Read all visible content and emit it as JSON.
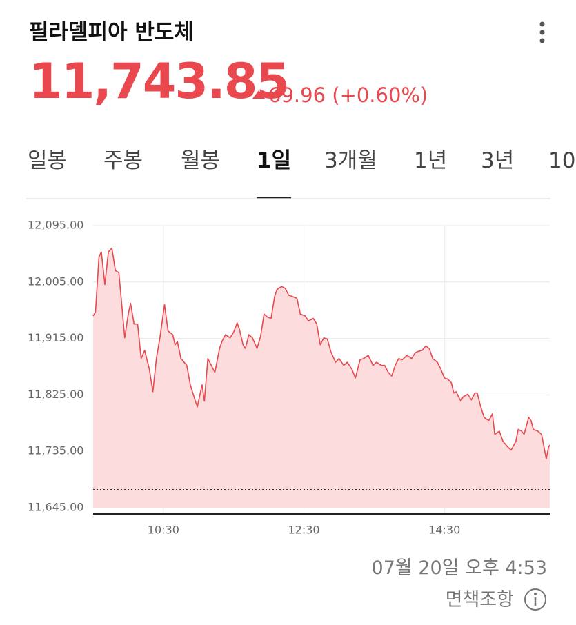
{
  "header": {
    "title": "필라델피아 반도체",
    "price": "11,743.85",
    "change": "69.96 (+0.60%)"
  },
  "tabs": {
    "items": [
      "일봉",
      "주봉",
      "월봉",
      "1일",
      "3개월",
      "1년",
      "3년",
      "10"
    ],
    "selected": 3
  },
  "chart_data": {
    "type": "area",
    "color": "#e8484e",
    "fill": "#fcdcdd",
    "x": [
      570,
      572,
      575,
      577,
      580,
      583,
      586,
      589,
      592,
      594,
      597,
      600,
      602,
      605,
      608,
      611,
      614,
      618,
      621,
      624,
      627,
      631,
      634,
      638,
      640,
      642,
      645,
      650,
      653,
      657,
      659,
      663,
      665,
      668,
      671,
      674,
      678,
      680,
      683,
      687,
      690,
      693,
      695,
      698,
      700,
      703,
      706,
      710,
      713,
      716,
      719,
      722,
      725,
      727,
      731,
      734,
      737,
      740,
      744,
      747,
      751,
      754,
      758,
      761,
      764,
      767,
      770,
      773,
      777,
      780,
      784,
      787,
      791,
      794,
      798,
      801,
      805,
      809,
      812,
      816,
      819,
      822,
      825,
      828,
      831,
      834,
      838,
      842,
      845,
      847,
      851,
      854,
      857,
      860,
      864,
      867,
      870,
      873,
      876,
      878,
      880,
      884,
      886,
      890,
      893,
      896,
      898,
      901,
      904,
      908,
      911,
      913,
      917,
      920,
      924,
      927,
      931,
      933,
      936,
      938,
      942,
      944,
      946,
      950,
      953,
      957,
      959,
      960
    ],
    "values": [
      11951,
      11957,
      12045,
      12053,
      12001,
      12053,
      12059,
      12023,
      12020,
      11979,
      11916,
      11954,
      11971,
      11938,
      11938,
      11883,
      11896,
      11866,
      11830,
      11883,
      11916,
      11969,
      11927,
      11921,
      11905,
      11910,
      11883,
      11872,
      11841,
      11817,
      11806,
      11841,
      11815,
      11883,
      11872,
      11861,
      11899,
      11910,
      11921,
      11916,
      11925,
      11940,
      11929,
      11905,
      11899,
      11921,
      11916,
      11899,
      11918,
      11954,
      11949,
      11947,
      11982,
      11993,
      11998,
      11995,
      11984,
      11982,
      11979,
      11954,
      11951,
      11943,
      11947,
      11938,
      11905,
      11916,
      11914,
      11894,
      11877,
      11883,
      11872,
      11877,
      11866,
      11852,
      11881,
      11883,
      11888,
      11872,
      11877,
      11872,
      11872,
      11861,
      11855,
      11872,
      11883,
      11881,
      11888,
      11883,
      11892,
      11894,
      11896,
      11903,
      11899,
      11883,
      11877,
      11866,
      11852,
      11850,
      11844,
      11828,
      11830,
      11815,
      11822,
      11826,
      11817,
      11828,
      11828,
      11806,
      11789,
      11784,
      11795,
      11762,
      11767,
      11751,
      11742,
      11737,
      11751,
      11770,
      11767,
      11762,
      11789,
      11784,
      11770,
      11767,
      11762,
      11723,
      11742,
      11745
    ],
    "reference_line": 11673.89,
    "xlim": [
      570,
      960
    ],
    "xticks": [
      {
        "value": 630,
        "label": "10:30"
      },
      {
        "value": 750,
        "label": "12:30"
      },
      {
        "value": 870,
        "label": "14:30"
      }
    ],
    "ylim": [
      11645,
      12095
    ],
    "yticks": [
      {
        "value": 12095,
        "label": "12,095.00"
      },
      {
        "value": 12005,
        "label": "12,005.00"
      },
      {
        "value": 11915,
        "label": "11,915.00"
      },
      {
        "value": 11825,
        "label": "11,825.00"
      },
      {
        "value": 11735,
        "label": "11,735.00"
      },
      {
        "value": 11645,
        "label": "11,645.00"
      }
    ],
    "grid": true
  },
  "footer": {
    "timestamp": "07월 20일 오후 4:53",
    "disclaimer": "면책조항"
  }
}
